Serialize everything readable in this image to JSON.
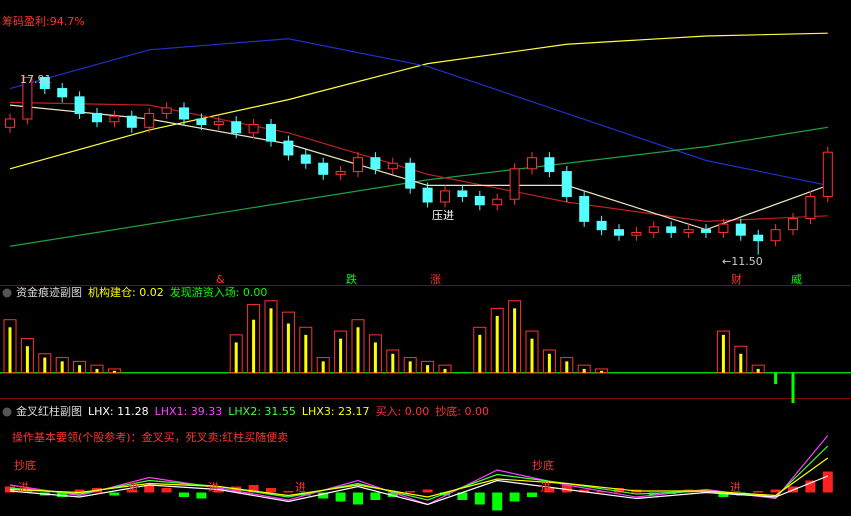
{
  "chart_data": [
    {
      "type": "candlestick",
      "title": "筹码盈利:94.7%",
      "title_color": "#ff3232",
      "ylim": [
        10.4,
        20.7
      ],
      "up_color": "#ff3232",
      "down_color": "#54ffff",
      "open": [
        16.1,
        16.4,
        17.9,
        17.5,
        17.2,
        16.6,
        16.3,
        16.5,
        16.1,
        16.6,
        16.8,
        16.4,
        16.2,
        16.3,
        15.9,
        16.2,
        15.6,
        15.1,
        14.8,
        14.4,
        14.5,
        15.0,
        14.6,
        14.8,
        13.9,
        13.4,
        13.8,
        13.6,
        13.3,
        13.5,
        14.6,
        15.0,
        14.5,
        13.6,
        12.7,
        12.4,
        12.2,
        12.3,
        12.5,
        12.3,
        12.4,
        12.3,
        12.6,
        12.2,
        12.0,
        12.4,
        12.8,
        13.6
      ],
      "close": [
        16.4,
        17.9,
        17.5,
        17.2,
        16.6,
        16.3,
        16.5,
        16.1,
        16.6,
        16.8,
        16.4,
        16.2,
        16.3,
        15.9,
        16.2,
        15.6,
        15.1,
        14.8,
        14.4,
        14.5,
        15.0,
        14.6,
        14.8,
        13.9,
        13.4,
        13.8,
        13.6,
        13.3,
        13.5,
        14.6,
        15.0,
        14.5,
        13.6,
        12.7,
        12.4,
        12.2,
        12.3,
        12.5,
        12.3,
        12.4,
        12.3,
        12.6,
        12.2,
        12.0,
        12.4,
        12.8,
        13.6,
        15.2
      ],
      "high": [
        16.6,
        17.91,
        17.8,
        17.7,
        17.4,
        16.8,
        16.7,
        16.7,
        16.8,
        17.0,
        17.0,
        16.6,
        16.5,
        16.5,
        16.4,
        16.4,
        15.8,
        15.3,
        15.0,
        14.7,
        15.2,
        15.2,
        15.0,
        15.0,
        14.1,
        14.0,
        14.0,
        13.8,
        13.7,
        14.8,
        15.2,
        15.2,
        14.7,
        13.8,
        12.9,
        12.6,
        12.5,
        12.7,
        12.7,
        12.6,
        12.6,
        12.8,
        12.8,
        12.4,
        12.6,
        13.0,
        13.8,
        15.4
      ],
      "low": [
        15.9,
        16.2,
        17.3,
        17.0,
        16.4,
        16.1,
        16.1,
        15.9,
        15.9,
        16.4,
        16.2,
        16.0,
        16.0,
        15.7,
        15.7,
        15.4,
        14.9,
        14.6,
        14.2,
        14.2,
        14.3,
        14.4,
        14.4,
        13.7,
        13.2,
        13.2,
        13.4,
        13.1,
        13.1,
        13.3,
        14.4,
        14.3,
        13.4,
        12.5,
        12.2,
        12.0,
        12.0,
        12.1,
        12.1,
        12.1,
        12.1,
        12.1,
        12.0,
        11.5,
        11.8,
        12.2,
        12.6,
        13.4
      ],
      "line_x": [
        0,
        8,
        16,
        24,
        32,
        40,
        47
      ],
      "lines": [
        {
          "color": "#ffff40",
          "values": [
            14.6,
            16.0,
            17.1,
            18.4,
            19.1,
            19.4,
            19.5
          ]
        },
        {
          "color": "#2030c8",
          "values": [
            17.5,
            18.9,
            19.3,
            18.3,
            16.6,
            14.9,
            14.0
          ]
        },
        {
          "color": "#20a040",
          "values": [
            11.8,
            12.6,
            13.4,
            14.2,
            14.8,
            15.4,
            16.1
          ]
        },
        {
          "color": "#c02020",
          "values": [
            17.0,
            16.9,
            15.9,
            14.4,
            13.4,
            12.7,
            12.9
          ]
        },
        {
          "color": "#e8e8c0",
          "values": [
            16.9,
            16.4,
            15.5,
            14.0,
            14.0,
            12.4,
            14.0
          ]
        }
      ],
      "annotations": [
        {
          "text": "17.91",
          "color": "#cccccc"
        },
        {
          "text": "←11.50",
          "color": "#cccccc"
        },
        {
          "text": "压进",
          "color": "#ffffff"
        },
        {
          "text": "&",
          "color": "#ff3232"
        },
        {
          "text": "跌",
          "color": "#00ff00"
        },
        {
          "text": "涨",
          "color": "#ff3232"
        },
        {
          "text": "财",
          "color": "#ff3232"
        },
        {
          "text": "威",
          "color": "#00ff00"
        }
      ]
    },
    {
      "type": "bar",
      "title": "资金痕迹副图",
      "ylim": [
        -8,
        20
      ],
      "negative_color": "#00ff00",
      "items": [
        {
          "text": "机构建仓: 0.02",
          "color": "#ffff00"
        },
        {
          "text": "发现游资入场: 0.00",
          "color": "#00ff00"
        }
      ],
      "series": [
        {
          "style": "box",
          "color": "#ff3232",
          "values": [
            14,
            9,
            5,
            4,
            3,
            2,
            1,
            0,
            0,
            0,
            0,
            0,
            0,
            10,
            18,
            19,
            16,
            12,
            4,
            11,
            14,
            10,
            6,
            4,
            3,
            2,
            0,
            12,
            17,
            19,
            11,
            6,
            4,
            2,
            1,
            0,
            0,
            0,
            0,
            0,
            0,
            11,
            7,
            2,
            0,
            0,
            0,
            0
          ]
        },
        {
          "style": "bar",
          "color": "#ffff00",
          "values": [
            12,
            7,
            4,
            3,
            2,
            1,
            0.5,
            0,
            0,
            0,
            0,
            0,
            0,
            8,
            14,
            17,
            13,
            10,
            3,
            9,
            12,
            8,
            5,
            3,
            2,
            1,
            0,
            10,
            15,
            17,
            9,
            5,
            3,
            1,
            0.5,
            0,
            0,
            0,
            0,
            0,
            0,
            10,
            5,
            1,
            -3,
            -8,
            0,
            0
          ]
        }
      ]
    },
    {
      "type": "bar",
      "title": "金叉红柱副图",
      "ylim": [
        -15,
        45
      ],
      "up_color": "#ff2020",
      "down_color": "#00ff00",
      "items": [
        {
          "text": "LHX: 11.28",
          "color": "#ffffff"
        },
        {
          "text": "LHX1: 39.33",
          "color": "#ff40ff"
        },
        {
          "text": "LHX2: 31.55",
          "color": "#40ff40"
        },
        {
          "text": "LHX3: 23.17",
          "color": "#ffff00"
        },
        {
          "text": "买入: 0.00",
          "color": "#ff3232"
        },
        {
          "text": "抄底: 0.00",
          "color": "#ff3232"
        }
      ],
      "series": [
        {
          "values": [
            4,
            3,
            -2,
            -3,
            2,
            3,
            -2,
            2,
            5,
            3,
            -3,
            -4,
            2,
            4,
            5,
            3,
            1,
            -2,
            -4,
            -6,
            -8,
            -5,
            -3,
            1,
            2,
            -2,
            -5,
            -8,
            -12,
            -6,
            -3,
            3,
            5,
            2,
            1,
            3,
            2,
            -2,
            -1,
            2,
            1,
            -3,
            -2,
            1,
            2,
            4,
            8,
            14
          ]
        }
      ],
      "line_x": [
        0,
        4,
        8,
        12,
        16,
        20,
        24,
        28,
        32,
        36,
        40,
        44,
        47
      ],
      "lines": [
        {
          "color": "#ff40ff",
          "values": [
            5,
            -2,
            10,
            3,
            -5,
            8,
            -8,
            15,
            5,
            -3,
            2,
            -4,
            38
          ]
        },
        {
          "color": "#40ff40",
          "values": [
            3,
            -1,
            8,
            4,
            -3,
            6,
            -5,
            12,
            6,
            -1,
            1,
            -3,
            31
          ]
        },
        {
          "color": "#ffff00",
          "values": [
            2,
            0,
            6,
            4,
            -2,
            5,
            -3,
            9,
            6,
            1,
            1,
            -2,
            23
          ]
        },
        {
          "color": "#ffffff",
          "values": [
            1,
            -3,
            5,
            2,
            -6,
            4,
            -8,
            8,
            2,
            -4,
            0,
            -3,
            11
          ]
        }
      ],
      "annotations": [
        {
          "text": "操作基本要领(个股参考)：金叉买，死叉卖;红柱买随便卖",
          "color": "#ff3232"
        },
        {
          "text": "抄底",
          "color": "#ff3232"
        },
        {
          "text": "抄底",
          "color": "#ff3232"
        },
        {
          "text": "进",
          "color": "#ff3232"
        },
        {
          "text": "进",
          "color": "#ff3232"
        },
        {
          "text": "进",
          "color": "#ff3232"
        },
        {
          "text": "进",
          "color": "#ff3232"
        },
        {
          "text": "进",
          "color": "#ff3232"
        },
        {
          "text": "进",
          "color": "#ff3232"
        }
      ]
    }
  ]
}
